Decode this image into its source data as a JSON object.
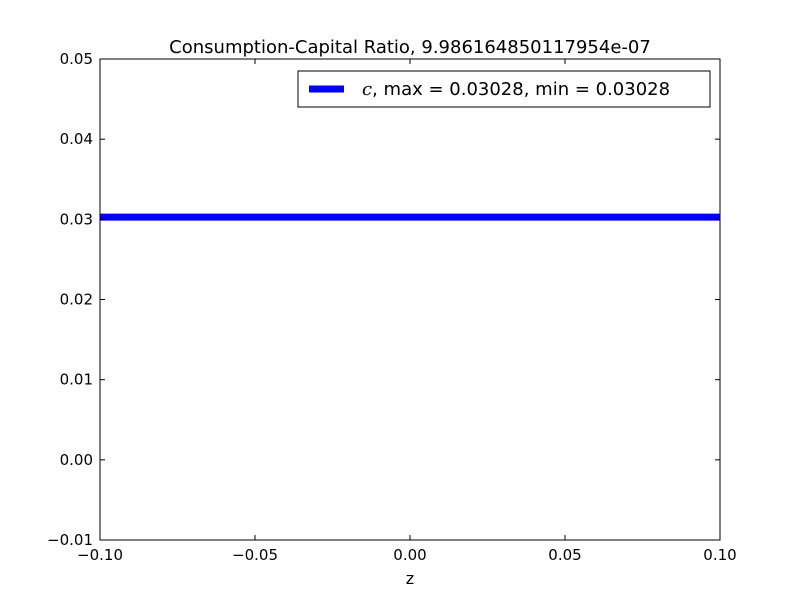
{
  "chart_data": {
    "type": "line",
    "title": "Consumption-Capital Ratio, 9.986164850117954e-07",
    "xlabel": "z",
    "ylabel": "",
    "xlim": [
      -0.1,
      0.1
    ],
    "ylim": [
      -0.01,
      0.05
    ],
    "x_ticks": [
      -0.1,
      -0.05,
      0.0,
      0.05,
      0.1
    ],
    "x_tick_labels": [
      "−0.10",
      "−0.05",
      "0.00",
      "0.05",
      "0.10"
    ],
    "y_ticks": [
      -0.01,
      0.0,
      0.01,
      0.02,
      0.03,
      0.04,
      0.05
    ],
    "y_tick_labels": [
      "−0.01",
      "0.00",
      "0.01",
      "0.02",
      "0.03",
      "0.04",
      "0.05"
    ],
    "grid": false,
    "legend_position": "top-right",
    "series": [
      {
        "name_symbol": "c",
        "name_rest": ", max = 0.03028, min = 0.03028",
        "color": "#0000ff",
        "x": [
          -0.1,
          0.1
        ],
        "y": [
          0.03028,
          0.03028
        ]
      }
    ]
  }
}
